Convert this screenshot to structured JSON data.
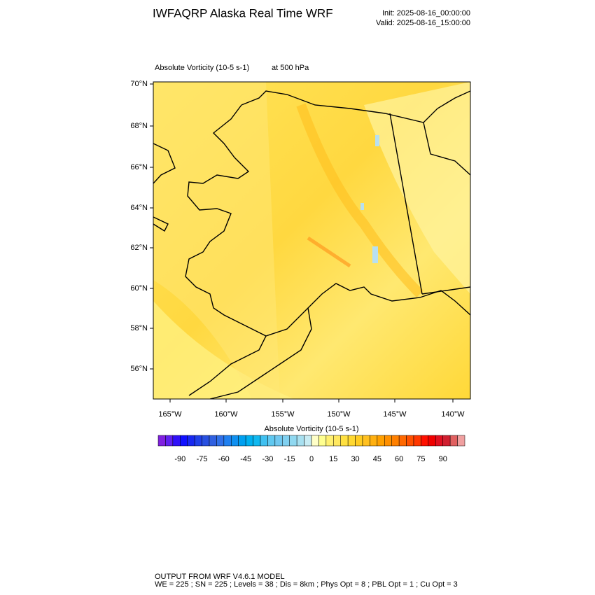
{
  "header": {
    "title": "IWFAQRP Alaska Real Time WRF",
    "init": "Init: 2025-08-16_00:00:00",
    "valid": "Valid: 2025-08-16_15:00:00"
  },
  "plot": {
    "field": "Absolute Vorticity   (10-5 s-1)",
    "level": "at   500 hPa",
    "lat_labels": [
      "70°N",
      "68°N",
      "66°N",
      "64°N",
      "62°N",
      "60°N",
      "58°N",
      "56°N"
    ],
    "lon_labels": [
      "165°W",
      "160°W",
      "155°W",
      "150°W",
      "145°W",
      "140°W"
    ]
  },
  "colorbar": {
    "title": "Absolute Vorticity  (10-5 s-1)",
    "labels": [
      -90,
      -75,
      -60,
      -45,
      -30,
      -15,
      0,
      15,
      30,
      45,
      60,
      75,
      90
    ],
    "colors": [
      "#8020e0",
      "#6020f0",
      "#3010f8",
      "#1010ff",
      "#1828f0",
      "#2040e8",
      "#2850e0",
      "#3060e0",
      "#3070e8",
      "#2080f0",
      "#1090f0",
      "#00a0f0",
      "#00b0f0",
      "#10b8f0",
      "#40c0f0",
      "#60c8f0",
      "#70c8f0",
      "#80d0f0",
      "#90d8f0",
      "#a8e0f0",
      "#c8ecf4",
      "#ffffc8",
      "#ffff90",
      "#fff070",
      "#ffe860",
      "#ffe040",
      "#ffd830",
      "#ffcc20",
      "#ffc020",
      "#ffb010",
      "#ffa000",
      "#ff9000",
      "#ff8000",
      "#ff6800",
      "#ff5000",
      "#ff3800",
      "#ff1000",
      "#f00000",
      "#e01020",
      "#d02030",
      "#e06060",
      "#f0a0a0"
    ]
  },
  "footer": {
    "line1": "OUTPUT FROM WRF V4.6.1 MODEL",
    "line2": "WE = 225 ; SN = 225 ; Levels = 38 ; Dis = 8km ; Phys Opt = 8 ; PBL Opt = 1 ; Cu Opt = 3"
  }
}
